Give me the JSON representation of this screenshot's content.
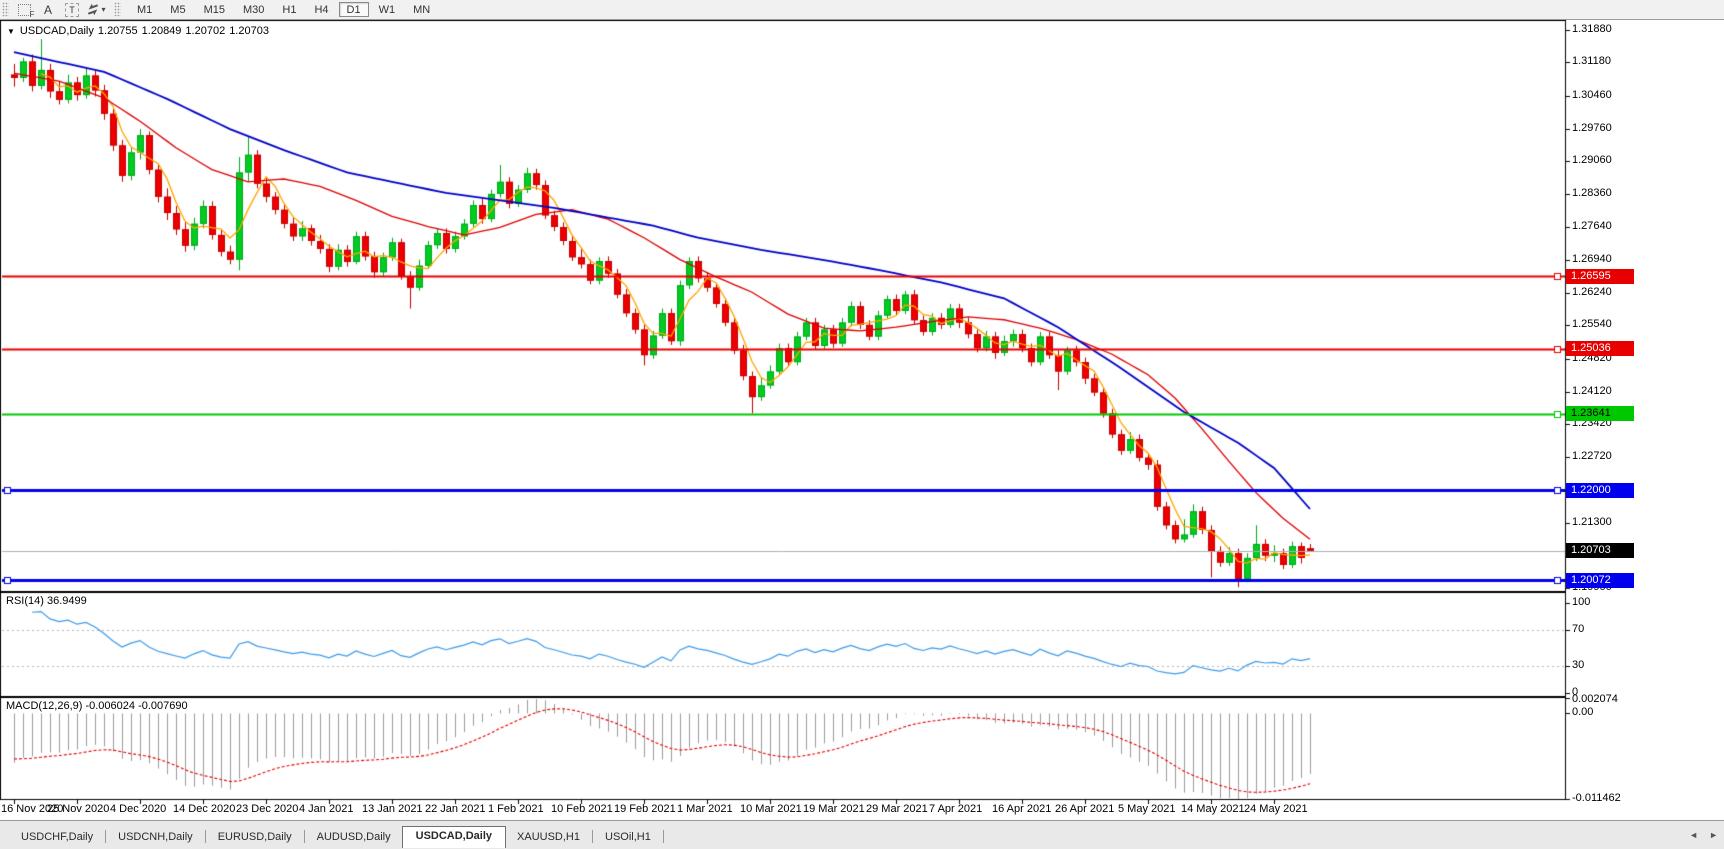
{
  "toolbar": {
    "tools": [
      {
        "name": "pattern-box-tool",
        "glyph": "F"
      },
      {
        "name": "text-label-tool",
        "glyph": "A"
      },
      {
        "name": "text-box-tool",
        "glyph": "T"
      },
      {
        "name": "arrow-style-tool",
        "glyph": ""
      }
    ],
    "dropdown_caret_glyph": "▾",
    "timeframes": [
      "M1",
      "M5",
      "M15",
      "M30",
      "H1",
      "H4",
      "D1",
      "W1",
      "MN"
    ],
    "active_timeframe": "D1"
  },
  "chart": {
    "collapse_triangle_glyph": "▼",
    "symbol_period": "USDCAD,Daily",
    "ohlc": [
      "1.20755",
      "1.20849",
      "1.20702",
      "1.20703"
    ],
    "y_axis": {
      "top_price": 1.3207,
      "bottom_price": 1.1984,
      "ticks": [
        "1.31880",
        "1.31180",
        "1.30460",
        "1.29760",
        "1.29060",
        "1.28360",
        "1.27640",
        "1.26940",
        "1.26240",
        "1.25540",
        "1.24820",
        "1.24120",
        "1.23420",
        "1.22720",
        "1.21300",
        "1.20600",
        "1.19900"
      ]
    },
    "hlines": [
      {
        "price": 1.26595,
        "label": "1.26595",
        "color": "#e80000",
        "text": "#ffffff",
        "width": 2
      },
      {
        "price": 1.25036,
        "label": "1.25036",
        "color": "#e80000",
        "text": "#ffffff",
        "width": 2
      },
      {
        "price": 1.23641,
        "label": "1.23641",
        "color": "#00c800",
        "text": "#000000",
        "width": 2
      },
      {
        "price": 1.22,
        "label": "1.22000",
        "color": "#0000ee",
        "text": "#ffffff",
        "width": 3
      },
      {
        "price": 1.20072,
        "label": "1.20072",
        "color": "#0000ee",
        "text": "#ffffff",
        "width": 3
      }
    ],
    "current_price": {
      "value": 1.20703,
      "label": "1.20703",
      "bg": "#000000",
      "text": "#ffffff"
    },
    "date_labels": [
      "16 Nov 2020",
      "25 Nov 2020",
      "4 Dec 2020",
      "14 Dec 2020",
      "23 Dec 2020",
      "4 Jan 2021",
      "13 Jan 2021",
      "22 Jan 2021",
      "1 Feb 2021",
      "10 Feb 2021",
      "19 Feb 2021",
      "1 Mar 2021",
      "10 Mar 2021",
      "19 Mar 2021",
      "29 Mar 2021",
      "7 Apr 2021",
      "16 Apr 2021",
      "26 Apr 2021",
      "5 May 2021",
      "14 May 2021",
      "24 May 2021"
    ],
    "candles": [
      [
        1.3092,
        1.3115,
        1.3066,
        1.3085
      ],
      [
        1.3085,
        1.3128,
        1.3076,
        1.312
      ],
      [
        1.312,
        1.3135,
        1.3056,
        1.3068
      ],
      [
        1.3068,
        1.3168,
        1.306,
        1.3102
      ],
      [
        1.3102,
        1.3115,
        1.3042,
        1.3056
      ],
      [
        1.3056,
        1.3078,
        1.3028,
        1.3038
      ],
      [
        1.3038,
        1.3092,
        1.303,
        1.3075
      ],
      [
        1.3075,
        1.3087,
        1.3036,
        1.3048
      ],
      [
        1.3048,
        1.3105,
        1.304,
        1.309
      ],
      [
        1.309,
        1.31,
        1.3045,
        1.3058
      ],
      [
        1.3058,
        1.307,
        1.2995,
        1.3008
      ],
      [
        1.3008,
        1.3018,
        1.2928,
        1.294
      ],
      [
        1.294,
        1.2952,
        1.2862,
        1.2875
      ],
      [
        1.2875,
        1.2935,
        1.2865,
        1.2925
      ],
      [
        1.2925,
        1.2975,
        1.291,
        1.2962
      ],
      [
        1.2962,
        1.297,
        1.2878,
        1.2888
      ],
      [
        1.2888,
        1.2898,
        1.2818,
        1.283
      ],
      [
        1.283,
        1.2848,
        1.278,
        1.2795
      ],
      [
        1.2795,
        1.281,
        1.2748,
        1.276
      ],
      [
        1.276,
        1.2775,
        1.2712,
        1.2725
      ],
      [
        1.2725,
        1.2785,
        1.2715,
        1.2772
      ],
      [
        1.2772,
        1.2822,
        1.2762,
        1.281
      ],
      [
        1.281,
        1.282,
        1.2738,
        1.2748
      ],
      [
        1.2748,
        1.276,
        1.2702,
        1.2712
      ],
      [
        1.2712,
        1.2725,
        1.2685,
        1.2695
      ],
      [
        1.2695,
        1.2915,
        1.2672,
        1.2882
      ],
      [
        1.2882,
        1.2958,
        1.2862,
        1.292
      ],
      [
        1.292,
        1.293,
        1.2848,
        1.2858
      ],
      [
        1.2858,
        1.287,
        1.2818,
        1.283
      ],
      [
        1.283,
        1.284,
        1.2792,
        1.2802
      ],
      [
        1.2802,
        1.2812,
        1.2762,
        1.2772
      ],
      [
        1.2772,
        1.2785,
        1.2735,
        1.2745
      ],
      [
        1.2745,
        1.2778,
        1.2735,
        1.2762
      ],
      [
        1.2762,
        1.277,
        1.2725,
        1.2735
      ],
      [
        1.2735,
        1.2748,
        1.2708,
        1.2718
      ],
      [
        1.2718,
        1.2728,
        1.2668,
        1.268
      ],
      [
        1.268,
        1.2728,
        1.2672,
        1.2716
      ],
      [
        1.2716,
        1.2726,
        1.268,
        1.269
      ],
      [
        1.269,
        1.2755,
        1.2685,
        1.2745
      ],
      [
        1.2745,
        1.2755,
        1.2693,
        1.2702
      ],
      [
        1.2702,
        1.2712,
        1.2656,
        1.2668
      ],
      [
        1.2668,
        1.271,
        1.266,
        1.27
      ],
      [
        1.27,
        1.2742,
        1.2692,
        1.2732
      ],
      [
        1.2732,
        1.274,
        1.2652,
        1.266
      ],
      [
        1.266,
        1.267,
        1.259,
        1.2635
      ],
      [
        1.2635,
        1.2695,
        1.2628,
        1.2682
      ],
      [
        1.2682,
        1.2735,
        1.2675,
        1.2726
      ],
      [
        1.2726,
        1.2762,
        1.2718,
        1.2752
      ],
      [
        1.2752,
        1.2762,
        1.2708,
        1.2718
      ],
      [
        1.2718,
        1.2755,
        1.271,
        1.2745
      ],
      [
        1.2745,
        1.2782,
        1.2738,
        1.2772
      ],
      [
        1.2772,
        1.2822,
        1.2765,
        1.2812
      ],
      [
        1.2812,
        1.2825,
        1.2772,
        1.2782
      ],
      [
        1.2782,
        1.2845,
        1.2775,
        1.2836
      ],
      [
        1.2836,
        1.2898,
        1.2828,
        1.2862
      ],
      [
        1.2862,
        1.2872,
        1.2805,
        1.2815
      ],
      [
        1.2815,
        1.2855,
        1.2808,
        1.2845
      ],
      [
        1.2845,
        1.2892,
        1.2838,
        1.288
      ],
      [
        1.288,
        1.289,
        1.2845,
        1.2855
      ],
      [
        1.2855,
        1.2865,
        1.2782,
        1.279
      ],
      [
        1.279,
        1.28,
        1.2756,
        1.2765
      ],
      [
        1.2765,
        1.2775,
        1.2726,
        1.2735
      ],
      [
        1.2735,
        1.2748,
        1.2692,
        1.27
      ],
      [
        1.27,
        1.2718,
        1.2676,
        1.2685
      ],
      [
        1.2685,
        1.2695,
        1.2642,
        1.265
      ],
      [
        1.265,
        1.27,
        1.2642,
        1.2692
      ],
      [
        1.2692,
        1.2702,
        1.2656,
        1.2665
      ],
      [
        1.2665,
        1.2675,
        1.2612,
        1.262
      ],
      [
        1.262,
        1.2632,
        1.2572,
        1.258
      ],
      [
        1.258,
        1.259,
        1.2536,
        1.2545
      ],
      [
        1.2545,
        1.2555,
        1.2468,
        1.249
      ],
      [
        1.249,
        1.2542,
        1.2482,
        1.2532
      ],
      [
        1.2532,
        1.259,
        1.2525,
        1.258
      ],
      [
        1.258,
        1.259,
        1.2512,
        1.252
      ],
      [
        1.252,
        1.265,
        1.251,
        1.264
      ],
      [
        1.264,
        1.27,
        1.2632,
        1.2692
      ],
      [
        1.2692,
        1.2702,
        1.2646,
        1.2655
      ],
      [
        1.2655,
        1.2668,
        1.2626,
        1.2635
      ],
      [
        1.2635,
        1.2645,
        1.2592,
        1.26
      ],
      [
        1.26,
        1.2612,
        1.2552,
        1.256
      ],
      [
        1.256,
        1.257,
        1.2492,
        1.25
      ],
      [
        1.25,
        1.2512,
        1.2436,
        1.2445
      ],
      [
        1.2445,
        1.2455,
        1.2365,
        1.24
      ],
      [
        1.24,
        1.2442,
        1.2392,
        1.2425
      ],
      [
        1.2425,
        1.2468,
        1.2418,
        1.2455
      ],
      [
        1.2455,
        1.2515,
        1.2448,
        1.2505
      ],
      [
        1.2505,
        1.2515,
        1.2466,
        1.2475
      ],
      [
        1.2475,
        1.254,
        1.2468,
        1.253
      ],
      [
        1.253,
        1.257,
        1.2522,
        1.256
      ],
      [
        1.256,
        1.257,
        1.2502,
        1.251
      ],
      [
        1.251,
        1.2555,
        1.2502,
        1.2545
      ],
      [
        1.2545,
        1.2555,
        1.2506,
        1.2515
      ],
      [
        1.2515,
        1.257,
        1.2508,
        1.256
      ],
      [
        1.256,
        1.2605,
        1.2552,
        1.2595
      ],
      [
        1.2595,
        1.2605,
        1.2546,
        1.2555
      ],
      [
        1.2555,
        1.2565,
        1.2522,
        1.253
      ],
      [
        1.253,
        1.2585,
        1.2522,
        1.2575
      ],
      [
        1.2575,
        1.2618,
        1.2568,
        1.261
      ],
      [
        1.261,
        1.262,
        1.2576,
        1.2585
      ],
      [
        1.2585,
        1.2628,
        1.2578,
        1.262
      ],
      [
        1.262,
        1.263,
        1.2556,
        1.2565
      ],
      [
        1.2565,
        1.2575,
        1.2532,
        1.254
      ],
      [
        1.254,
        1.258,
        1.2532,
        1.257
      ],
      [
        1.257,
        1.258,
        1.2546,
        1.2555
      ],
      [
        1.2555,
        1.26,
        1.2548,
        1.259
      ],
      [
        1.259,
        1.26,
        1.2548,
        1.256
      ],
      [
        1.256,
        1.257,
        1.2526,
        1.2535
      ],
      [
        1.2535,
        1.2545,
        1.2496,
        1.2505
      ],
      [
        1.2505,
        1.2542,
        1.2498,
        1.253
      ],
      [
        1.253,
        1.254,
        1.2482,
        1.2495
      ],
      [
        1.2495,
        1.2532,
        1.2488,
        1.252
      ],
      [
        1.252,
        1.2545,
        1.2508,
        1.2535
      ],
      [
        1.2535,
        1.2545,
        1.2496,
        1.2505
      ],
      [
        1.2505,
        1.2515,
        1.2466,
        1.2475
      ],
      [
        1.2475,
        1.254,
        1.2468,
        1.253
      ],
      [
        1.253,
        1.254,
        1.2482,
        1.249
      ],
      [
        1.249,
        1.25,
        1.2415,
        1.2455
      ],
      [
        1.2455,
        1.2508,
        1.2448,
        1.25
      ],
      [
        1.25,
        1.251,
        1.2466,
        1.2475
      ],
      [
        1.2475,
        1.2485,
        1.2428,
        1.244
      ],
      [
        1.244,
        1.245,
        1.2402,
        1.241
      ],
      [
        1.241,
        1.242,
        1.2356,
        1.2365
      ],
      [
        1.2365,
        1.2375,
        1.2312,
        1.232
      ],
      [
        1.232,
        1.233,
        1.2276,
        1.2285
      ],
      [
        1.2285,
        1.2325,
        1.2278,
        1.231
      ],
      [
        1.231,
        1.232,
        1.2262,
        1.227
      ],
      [
        1.227,
        1.228,
        1.2244,
        1.2255
      ],
      [
        1.2255,
        1.2265,
        1.2156,
        1.2165
      ],
      [
        1.2165,
        1.2175,
        1.2116,
        1.2125
      ],
      [
        1.2125,
        1.2135,
        1.2086,
        1.2095
      ],
      [
        1.2095,
        1.2138,
        1.2088,
        1.2105
      ],
      [
        1.2105,
        1.217,
        1.2098,
        1.2155
      ],
      [
        1.2155,
        1.2165,
        1.2106,
        1.2115
      ],
      [
        1.2115,
        1.2125,
        1.2013,
        1.207
      ],
      [
        1.207,
        1.208,
        1.2036,
        1.2045
      ],
      [
        1.2045,
        1.2078,
        1.2038,
        1.2065
      ],
      [
        1.2065,
        1.2075,
        1.1992,
        1.201
      ],
      [
        1.201,
        1.2065,
        1.2003,
        1.2055
      ],
      [
        1.2055,
        1.2125,
        1.2048,
        1.2085
      ],
      [
        1.2085,
        1.2095,
        1.2048,
        1.206
      ],
      [
        1.206,
        1.2082,
        1.2046,
        1.2065
      ],
      [
        1.2065,
        1.2075,
        1.2031,
        1.204
      ],
      [
        1.204,
        1.209,
        1.2033,
        1.208
      ],
      [
        1.208,
        1.2088,
        1.2043,
        1.2055
      ],
      [
        1.20755,
        1.20849,
        1.20702,
        1.20703
      ]
    ],
    "ma_blue": [
      [
        0,
        1.314
      ],
      [
        10,
        1.3098
      ],
      [
        17,
        1.304
      ],
      [
        24,
        1.2975
      ],
      [
        30,
        1.293
      ],
      [
        37,
        1.2882
      ],
      [
        48,
        1.2838
      ],
      [
        60,
        1.2806
      ],
      [
        71,
        1.2768
      ],
      [
        76,
        1.2742
      ],
      [
        83,
        1.2716
      ],
      [
        90,
        1.2694
      ],
      [
        96,
        1.2673
      ],
      [
        103,
        1.2646
      ],
      [
        110,
        1.2612
      ],
      [
        116,
        1.255
      ],
      [
        123,
        1.2462
      ],
      [
        130,
        1.2368
      ],
      [
        136,
        1.2302
      ],
      [
        140,
        1.2248
      ],
      [
        144,
        1.216
      ]
    ],
    "ma_red": [
      [
        0,
        1.3095
      ],
      [
        5,
        1.3078
      ],
      [
        10,
        1.3042
      ],
      [
        14,
        1.2992
      ],
      [
        18,
        1.2935
      ],
      [
        22,
        1.2888
      ],
      [
        26,
        1.2862
      ],
      [
        30,
        1.2868
      ],
      [
        34,
        1.2852
      ],
      [
        38,
        1.2822
      ],
      [
        42,
        1.2788
      ],
      [
        46,
        1.2766
      ],
      [
        50,
        1.2748
      ],
      [
        54,
        1.2764
      ],
      [
        58,
        1.2792
      ],
      [
        62,
        1.2802
      ],
      [
        66,
        1.2782
      ],
      [
        70,
        1.2742
      ],
      [
        74,
        1.2695
      ],
      [
        78,
        1.2658
      ],
      [
        82,
        1.2625
      ],
      [
        86,
        1.2578
      ],
      [
        90,
        1.2548
      ],
      [
        94,
        1.2542
      ],
      [
        98,
        1.255
      ],
      [
        102,
        1.2562
      ],
      [
        106,
        1.2572
      ],
      [
        110,
        1.2566
      ],
      [
        114,
        1.2548
      ],
      [
        118,
        1.2524
      ],
      [
        122,
        1.2492
      ],
      [
        126,
        1.2448
      ],
      [
        129,
        1.2398
      ],
      [
        132,
        1.2332
      ],
      [
        135,
        1.2262
      ],
      [
        138,
        1.2195
      ],
      [
        141,
        1.214
      ],
      [
        144,
        1.2095
      ]
    ]
  },
  "rsi": {
    "label": "RSI(14) 36.9499",
    "name": "RSI(14)",
    "value": "36.9499",
    "ticks": [
      "100",
      "70",
      "30",
      "0"
    ],
    "levels": [
      70,
      30
    ]
  },
  "macd": {
    "label": "MACD(12,26,9) -0.006024 -0.007690",
    "name": "MACD(12,26,9)",
    "macd_value": "-0.006024",
    "signal_value": "-0.007690",
    "ticks": [
      "0.002074",
      "0.00",
      "-0.011462"
    ],
    "max": 0.002074,
    "min": -0.011462
  },
  "tabs": {
    "items": [
      "USDCHF,Daily",
      "USDCNH,Daily",
      "EURUSD,Daily",
      "AUDUSD,Daily",
      "USDCAD,Daily",
      "XAUUSD,H1",
      "USOil,H1"
    ],
    "active": "USDCAD,Daily",
    "scroll_left_glyph": "◄",
    "scroll_right_glyph": "►"
  },
  "colors": {
    "up_candle": "#00cc22",
    "up_edge": "#00a81c",
    "down_candle": "#ee0000",
    "down_edge": "#c40000",
    "ma_blue": "#0000c8",
    "ma_red": "#dc0000",
    "ma_orange": "#ffa500",
    "rsi_line": "#3e9be9",
    "rsi_grid": "#b8b8b8",
    "macd_hist": "#9c9c9c",
    "macd_signal": "#e00000",
    "current_price_line": "#b0b0b0",
    "panel_border": "#000000"
  }
}
